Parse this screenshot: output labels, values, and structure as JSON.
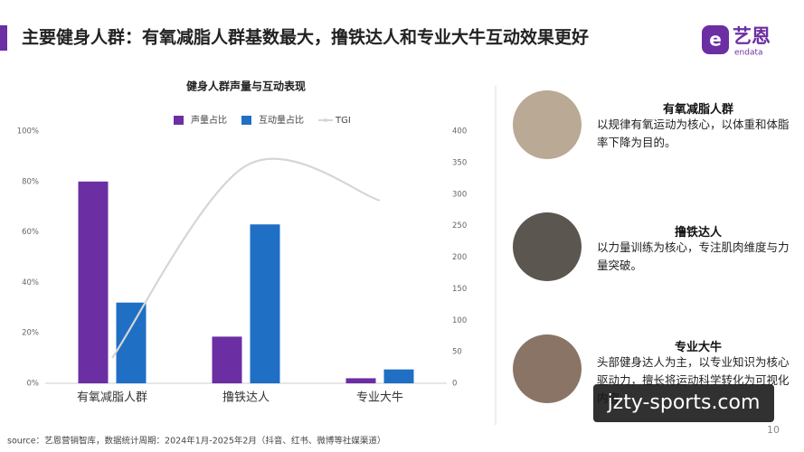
{
  "header": {
    "title": "主要健身人群：有氧减脂人群基数最大，撸铁达人和专业大牛互动效果更好",
    "logo": "艺恩",
    "logo_sub": "endata"
  },
  "chart_data": {
    "type": "bar",
    "title": "健身人群声量与互动表现",
    "categories": [
      "有氧减脂人群",
      "撸铁达人",
      "专业大牛"
    ],
    "series": [
      {
        "name": "声量占比",
        "color": "#6b2fa3",
        "values": [
          80,
          18.5,
          2
        ]
      },
      {
        "name": "互动量占比",
        "color": "#1f6fc4",
        "values": [
          32,
          63,
          5.5
        ]
      },
      {
        "name": "TGI",
        "color": "#d6d6d6",
        "type": "line",
        "axis": "y2",
        "values": [
          40,
          345,
          290
        ]
      }
    ],
    "ylim": [
      0,
      100
    ],
    "yticks": [
      {
        "value": 0,
        "label": "0%"
      },
      {
        "value": 20,
        "label": "20%"
      },
      {
        "value": 40,
        "label": "40%"
      },
      {
        "value": 60,
        "label": "60%"
      },
      {
        "value": 80,
        "label": "80%"
      },
      {
        "value": 100,
        "label": "100%"
      }
    ],
    "y2lim": [
      0,
      400
    ],
    "y2ticks": [
      0,
      50,
      100,
      150,
      200,
      250,
      300,
      350,
      400
    ],
    "legend": "top"
  },
  "profiles": [
    {
      "title": "有氧减脂人群",
      "description": "以规律有氧运动为核心，以体重和体脂率下降为目的。"
    },
    {
      "title": "撸铁达人",
      "description": "以力量训练为核心，专注肌肉维度与力量突破。"
    },
    {
      "title": "专业大牛",
      "description": "头部健身达人为主，以专业知识为核心驱动力，擅长将运动科学转化为可视化内容"
    }
  ],
  "footer": {
    "source": "source：艺恩营销智库，数据统计周期：2024年1月-2025年2月（抖音、红书、微博等社媒渠道）",
    "page": "10"
  },
  "watermark": "jzty-sports.com"
}
